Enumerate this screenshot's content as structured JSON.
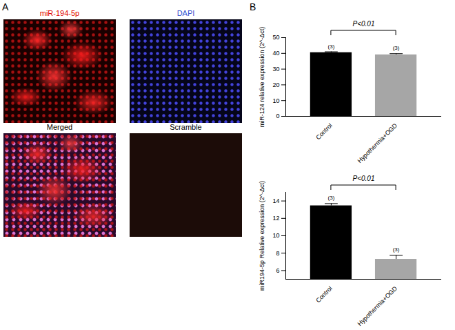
{
  "panels": [
    {
      "label": "A",
      "images": [
        "miR-194-5p",
        "DAPI",
        "Merged",
        "Scramble"
      ]
    },
    {
      "label": "B"
    }
  ],
  "chart_data": [
    {
      "type": "bar",
      "y_label": "miR-124 relative expression (2^-Δct)",
      "categories": [
        "Control",
        "Hypothermia+OGD"
      ],
      "values": [
        40.5,
        39.1
      ],
      "errors": [
        0.5,
        0.7
      ],
      "colors": [
        "#000000",
        "#a6a6a6"
      ],
      "ylim": [
        0,
        50
      ],
      "yticks": [
        0,
        10,
        20,
        30,
        40,
        50
      ],
      "n_labels": [
        "(3)",
        "(3)"
      ],
      "comparison": "P<0.01"
    },
    {
      "type": "bar",
      "y_label": "miR194-5p Relative expression (2^-Δct)",
      "categories": [
        "Control",
        "Hypothermia+OGD"
      ],
      "values": [
        13.45,
        7.3
      ],
      "errors": [
        0.25,
        0.45
      ],
      "colors": [
        "#000000",
        "#a6a6a6"
      ],
      "ylim": [
        5,
        15
      ],
      "yticks": [
        6,
        8,
        10,
        12,
        14
      ],
      "n_labels": [
        "(3)",
        "(3)"
      ],
      "comparison": "P<0.01"
    }
  ]
}
